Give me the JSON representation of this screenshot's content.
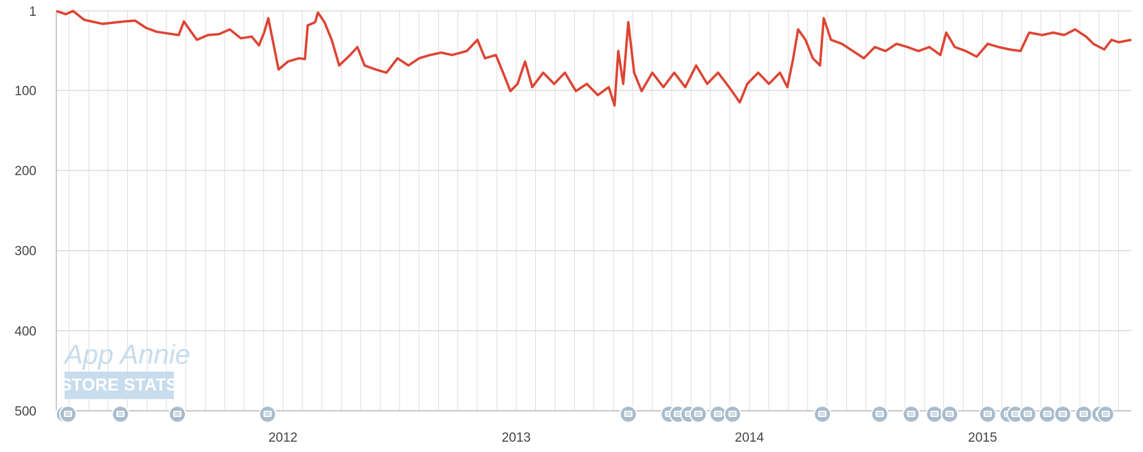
{
  "chart_data": {
    "type": "line",
    "color": "#dd4433",
    "annotations": [
      "App Annie",
      "STORE STATS"
    ],
    "x": [
      2011.028,
      2011.069,
      2011.1,
      2011.147,
      2011.225,
      2011.319,
      2011.366,
      2011.412,
      2011.459,
      2011.506,
      2011.553,
      2011.575,
      2011.606,
      2011.631,
      2011.678,
      2011.725,
      2011.772,
      2011.819,
      2011.866,
      2011.897,
      2011.919,
      2011.937,
      2011.959,
      2011.981,
      2012.022,
      2012.069,
      2012.094,
      2012.106,
      2012.138,
      2012.15,
      2012.178,
      2012.209,
      2012.241,
      2012.288,
      2012.319,
      2012.35,
      2012.397,
      2012.444,
      2012.491,
      2012.538,
      2012.584,
      2012.631,
      2012.678,
      2012.725,
      2012.788,
      2012.834,
      2012.866,
      2012.913,
      2012.944,
      2012.975,
      2013.006,
      2013.038,
      2013.069,
      2013.116,
      2013.163,
      2013.209,
      2013.256,
      2013.303,
      2013.35,
      2013.397,
      2013.422,
      2013.438,
      2013.459,
      2013.481,
      2013.506,
      2013.538,
      2013.584,
      2013.631,
      2013.678,
      2013.725,
      2013.772,
      2013.819,
      2013.866,
      2013.913,
      2013.959,
      2013.991,
      2014.038,
      2014.084,
      2014.131,
      2014.163,
      2014.188,
      2014.209,
      2014.241,
      2014.272,
      2014.303,
      2014.319,
      2014.35,
      2014.397,
      2014.444,
      2014.491,
      2014.538,
      2014.584,
      2014.631,
      2014.678,
      2014.725,
      2014.772,
      2014.819,
      2014.844,
      2014.881,
      2014.928,
      2014.975,
      2015.022,
      2015.069,
      2015.116,
      2015.163,
      2015.2,
      2015.256,
      2015.303,
      2015.35,
      2015.397,
      2015.444,
      2015.475,
      2015.522,
      2015.553,
      2015.584,
      2015.638
    ],
    "values": [
      1,
      5,
      1,
      12,
      17,
      14,
      13,
      22,
      27,
      29,
      31,
      14,
      27,
      37,
      31,
      30,
      24,
      35,
      33,
      44,
      28,
      10,
      42,
      74,
      64,
      60,
      61,
      19,
      15,
      3,
      15,
      37,
      69,
      56,
      46,
      69,
      74,
      78,
      60,
      69,
      60,
      56,
      53,
      56,
      51,
      37,
      60,
      56,
      78,
      101,
      92,
      64,
      96,
      78,
      92,
      78,
      101,
      92,
      106,
      96,
      119,
      51,
      92,
      15,
      78,
      101,
      78,
      96,
      78,
      96,
      69,
      92,
      78,
      96,
      115,
      92,
      78,
      92,
      78,
      96,
      60,
      24,
      37,
      60,
      69,
      10,
      37,
      42,
      51,
      60,
      46,
      51,
      42,
      46,
      51,
      46,
      56,
      28,
      46,
      51,
      58,
      42,
      46,
      49,
      51,
      28,
      31,
      28,
      31,
      24,
      33,
      42,
      49,
      37,
      40,
      37
    ],
    "xlim": [
      2011.028,
      2015.638
    ],
    "xticks": [
      2012,
      2013,
      2014,
      2015
    ],
    "x_minor_ticks": [
      2011.083,
      2011.167,
      2011.25,
      2011.333,
      2011.417,
      2011.5,
      2011.583,
      2011.667,
      2011.75,
      2011.833,
      2011.917,
      2012.083,
      2012.167,
      2012.25,
      2012.333,
      2012.417,
      2012.5,
      2012.583,
      2012.667,
      2012.75,
      2012.833,
      2012.917,
      2013.083,
      2013.167,
      2013.25,
      2013.333,
      2013.417,
      2013.5,
      2013.583,
      2013.667,
      2013.75,
      2013.833,
      2013.917,
      2014.083,
      2014.167,
      2014.25,
      2014.333,
      2014.417,
      2014.5,
      2014.583,
      2014.667,
      2014.75,
      2014.833,
      2014.917,
      2015.083,
      2015.167,
      2015.25,
      2015.333,
      2015.417,
      2015.5,
      2015.583
    ],
    "ylim": [
      1,
      500
    ],
    "y_inverted": true,
    "yticks": [
      1,
      100,
      200,
      300,
      400,
      500
    ],
    "grid": true,
    "event_markers": [
      2011.063,
      2011.078,
      2011.303,
      2011.547,
      2011.934,
      2013.481,
      2013.656,
      2013.694,
      2013.741,
      2013.781,
      2013.866,
      2013.928,
      2014.313,
      2014.559,
      2014.694,
      2014.794,
      2014.859,
      2015.022,
      2015.109,
      2015.141,
      2015.194,
      2015.278,
      2015.344,
      2015.434,
      2015.503,
      2015.528
    ]
  }
}
